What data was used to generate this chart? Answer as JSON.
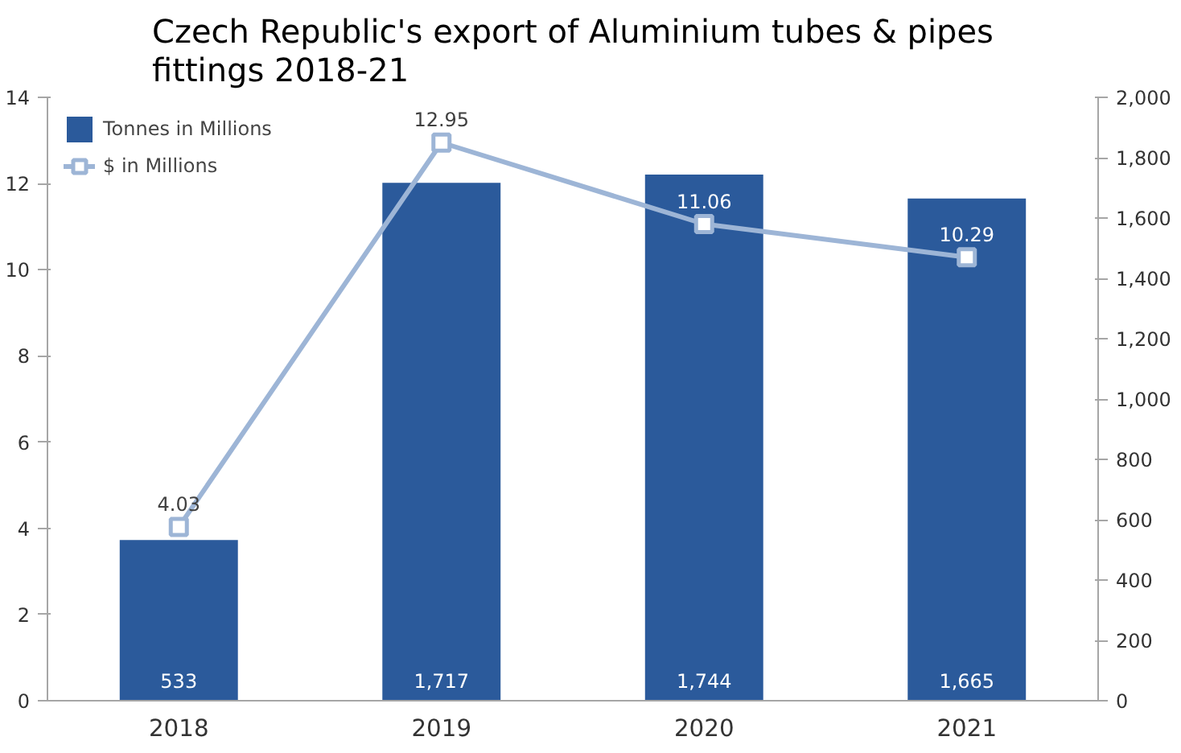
{
  "chart_data": {
    "type": "bar",
    "title": "Czech Republic's export of Aluminium tubes & pipes fittings 2018-21",
    "categories": [
      "2018",
      "2019",
      "2020",
      "2021"
    ],
    "series": [
      {
        "name": "Tonnes in Millions",
        "axis": "y2",
        "color": "#2b5a9b",
        "values": [
          533,
          1717,
          1744,
          1665
        ],
        "value_labels": [
          "533",
          "1,717",
          "1,744",
          "1,665"
        ]
      },
      {
        "name": "$ in Millions",
        "type": "line",
        "axis": "y",
        "color": "#9db5d6",
        "marker": "square",
        "values": [
          4.03,
          12.95,
          11.06,
          10.29
        ],
        "value_labels": [
          "4.03",
          "12.95",
          "11.06",
          "10.29"
        ]
      }
    ],
    "ylim": [
      0,
      14
    ],
    "yticks": [
      0,
      2,
      4,
      6,
      8,
      10,
      12,
      14
    ],
    "y2lim": [
      0,
      2000
    ],
    "y2ticks": [
      0,
      {
        "value": 200,
        "label": "200"
      },
      {
        "value": 400,
        "label": "400"
      },
      {
        "value": 600,
        "label": "600"
      },
      {
        "value": 800,
        "label": "800"
      },
      {
        "value": 1000,
        "label": "1,000"
      },
      {
        "value": 1200,
        "label": "1,200"
      },
      {
        "value": 1400,
        "label": "1,400"
      },
      {
        "value": 1600,
        "label": "1,600"
      },
      {
        "value": 1800,
        "label": "1,800"
      },
      {
        "value": 2000,
        "label": "2,000"
      }
    ],
    "grid": false,
    "legend": "top left"
  }
}
